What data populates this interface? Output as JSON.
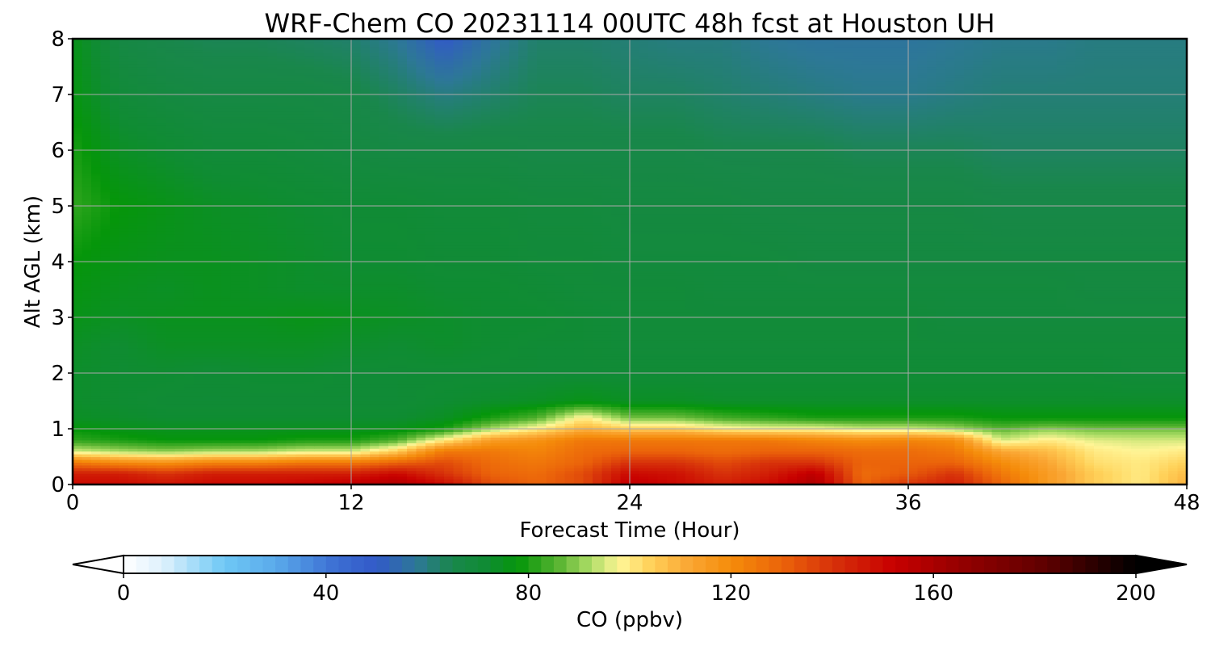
{
  "chart_data": {
    "type": "heatmap",
    "title": "WRF-Chem CO  20231114 00UTC 48h fcst at Houston UH",
    "xlabel": "Forecast Time (Hour)",
    "ylabel": "Alt AGL (km)",
    "xlim": [
      0,
      48
    ],
    "ylim": [
      0,
      8
    ],
    "x_ticks": [
      "0",
      "12",
      "24",
      "36",
      "48"
    ],
    "y_ticks": [
      "0",
      "1",
      "2",
      "3",
      "4",
      "5",
      "6",
      "7",
      "8"
    ],
    "grid": true,
    "colorbar": {
      "label": "CO  (ppbv)",
      "min": 0,
      "max": 200,
      "ticks": [
        "0",
        "40",
        "80",
        "120",
        "160",
        "200"
      ],
      "extend": "both",
      "orientation": "horizontal"
    },
    "x": [
      0,
      2,
      4,
      6,
      8,
      10,
      12,
      14,
      16,
      18,
      20,
      22,
      24,
      26,
      28,
      30,
      32,
      34,
      36,
      38,
      40,
      42,
      44,
      46,
      48
    ],
    "y": [
      0,
      0.2,
      0.4,
      0.6,
      0.8,
      1,
      1.2,
      1.5,
      2,
      2.5,
      3,
      3.5,
      4,
      5,
      6,
      7,
      8
    ],
    "z": [
      [
        150,
        150,
        148,
        150,
        150,
        152,
        155,
        160,
        150,
        135,
        130,
        135,
        155,
        150,
        145,
        150,
        160,
        130,
        140,
        145,
        130,
        115,
        105,
        100,
        110
      ],
      [
        145,
        145,
        140,
        145,
        145,
        145,
        145,
        150,
        140,
        130,
        128,
        135,
        150,
        148,
        140,
        145,
        155,
        128,
        132,
        140,
        125,
        115,
        105,
        100,
        108
      ],
      [
        125,
        120,
        118,
        122,
        122,
        125,
        125,
        130,
        135,
        128,
        125,
        130,
        140,
        140,
        135,
        140,
        140,
        130,
        130,
        130,
        120,
        112,
        102,
        100,
        104
      ],
      [
        95,
        92,
        90,
        92,
        92,
        95,
        95,
        105,
        125,
        125,
        122,
        128,
        130,
        130,
        128,
        130,
        130,
        128,
        128,
        125,
        112,
        108,
        100,
        98,
        100
      ],
      [
        82,
        80,
        78,
        78,
        78,
        80,
        80,
        85,
        100,
        115,
        118,
        125,
        125,
        125,
        125,
        125,
        122,
        120,
        122,
        120,
        95,
        100,
        96,
        95,
        95
      ],
      [
        78,
        76,
        75,
        75,
        75,
        75,
        75,
        76,
        80,
        92,
        100,
        110,
        105,
        105,
        100,
        98,
        98,
        95,
        95,
        92,
        86,
        90,
        88,
        88,
        88
      ],
      [
        74,
        73,
        72,
        72,
        72,
        72,
        72,
        72,
        74,
        80,
        85,
        100,
        88,
        88,
        84,
        82,
        80,
        80,
        80,
        80,
        78,
        78,
        78,
        78,
        78
      ],
      [
        73,
        72,
        71,
        71,
        71,
        71,
        71,
        71,
        72,
        73,
        74,
        76,
        74,
        74,
        73,
        73,
        73,
        73,
        73,
        73,
        73,
        73,
        73,
        73,
        73
      ],
      [
        73,
        72,
        72,
        71,
        72,
        72,
        71,
        71,
        71,
        71,
        71,
        71,
        71,
        71,
        71,
        71,
        71,
        71,
        71,
        71,
        71,
        71,
        71,
        70,
        70
      ],
      [
        74,
        72,
        74,
        74,
        74,
        74,
        73,
        72,
        73,
        72,
        71,
        71,
        70,
        70,
        70,
        70,
        70,
        70,
        70,
        70,
        70,
        70,
        70,
        70,
        70
      ],
      [
        76,
        74,
        75,
        75,
        75,
        76,
        75,
        74,
        73,
        72,
        72,
        71,
        70,
        70,
        70,
        70,
        70,
        70,
        70,
        69,
        69,
        69,
        69,
        69,
        69
      ],
      [
        77,
        75,
        74,
        75,
        74,
        73,
        73,
        73,
        72,
        72,
        71,
        70,
        70,
        70,
        69,
        69,
        69,
        69,
        69,
        69,
        69,
        69,
        68,
        68,
        68
      ],
      [
        78,
        76,
        75,
        75,
        74,
        73,
        72,
        72,
        71,
        71,
        70,
        70,
        69,
        69,
        69,
        69,
        68,
        68,
        68,
        68,
        68,
        68,
        68,
        68,
        68
      ],
      [
        82,
        78,
        76,
        74,
        73,
        72,
        71,
        71,
        70,
        70,
        69,
        69,
        68,
        68,
        68,
        67,
        67,
        67,
        67,
        67,
        66,
        66,
        66,
        66,
        66
      ],
      [
        80,
        74,
        72,
        70,
        70,
        69,
        68,
        67,
        67,
        67,
        66,
        66,
        66,
        66,
        65,
        65,
        65,
        64,
        64,
        64,
        63,
        63,
        63,
        63,
        63
      ],
      [
        77,
        70,
        68,
        67,
        67,
        67,
        66,
        63,
        60,
        62,
        64,
        64,
        63,
        63,
        62,
        61,
        60,
        59,
        59,
        60,
        61,
        61,
        61,
        61,
        61
      ],
      [
        76,
        67,
        65,
        64,
        64,
        63,
        62,
        58,
        50,
        57,
        62,
        62,
        61,
        60,
        60,
        58,
        57,
        57,
        57,
        58,
        59,
        59,
        60,
        60,
        60
      ]
    ]
  }
}
